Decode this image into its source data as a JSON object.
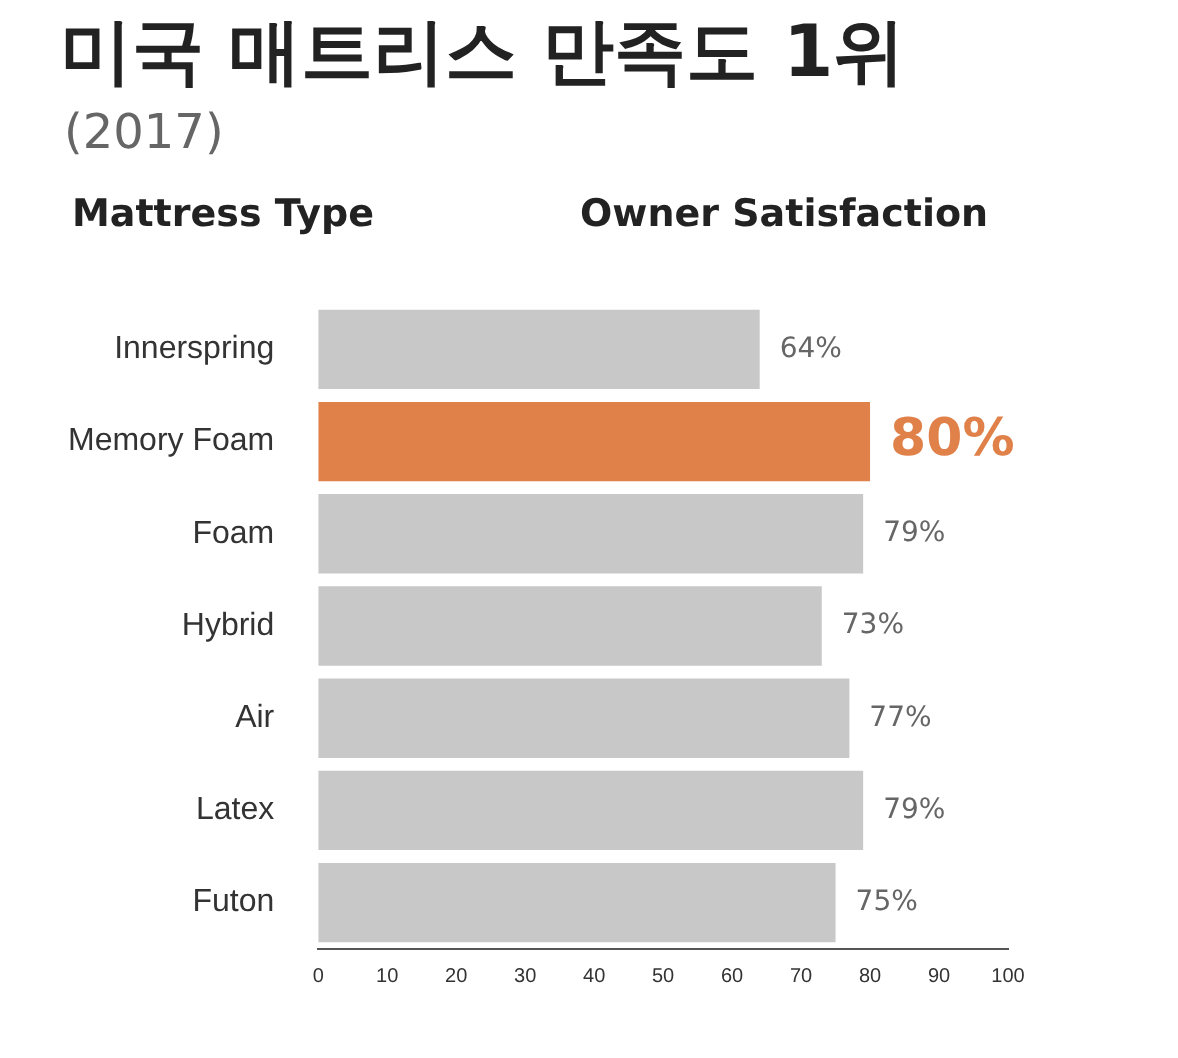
{
  "chart_data": {
    "type": "bar",
    "orientation": "horizontal",
    "title": "미국 매트리스 만족도 1위",
    "subtitle": "(2017)",
    "ylabel": "Mattress Type",
    "xlabel": "Owner Satisfaction",
    "categories": [
      "Innerspring",
      "Memory Foam",
      "Foam",
      "Hybrid",
      "Air",
      "Latex",
      "Futon"
    ],
    "values": [
      64,
      80,
      79,
      73,
      77,
      79,
      75
    ],
    "colors": [
      "#c8c8c8",
      "#e0814a",
      "#c8c8c8",
      "#c8c8c8",
      "#c8c8c8",
      "#c8c8c8",
      "#c8c8c8"
    ],
    "value_labels": [
      "64%",
      "80%",
      "79%",
      "73%",
      "77%",
      "79%",
      "75%"
    ],
    "xlim": [
      0,
      100
    ],
    "xticks": [
      0,
      10,
      20,
      30,
      40,
      50,
      60,
      70,
      80,
      90,
      100
    ],
    "grid": false,
    "legend": false
  }
}
